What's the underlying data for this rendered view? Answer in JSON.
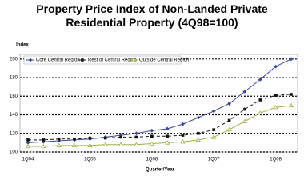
{
  "chart_data": {
    "type": "line",
    "title": "Property Price Index of Non-Landed Private Residential Property (4Q98=100)",
    "y_label": "Index",
    "x_label": "Quarter/Year",
    "categories": [
      "1Q04",
      null,
      null,
      null,
      "1Q05",
      null,
      null,
      null,
      "1Q06",
      null,
      null,
      null,
      "1Q07",
      null,
      null,
      null,
      "1Q08",
      null
    ],
    "series": [
      {
        "name": "Core Central Region",
        "color": "#3b4a9c",
        "marker": "diamond",
        "dash": "none",
        "values": [
          110,
          111,
          112,
          113,
          114,
          116,
          118,
          120,
          123,
          125,
          130,
          137,
          144,
          152,
          165,
          178,
          192,
          200
        ]
      },
      {
        "name": "Rest of Central Region",
        "color": "#111111",
        "marker": "square",
        "dash": "4,3",
        "values": [
          113,
          113,
          114,
          114,
          115,
          115,
          116,
          116,
          117,
          117,
          118,
          120,
          124,
          134,
          146,
          156,
          161,
          162
        ]
      },
      {
        "name": "Outside Central Region",
        "color": "#9fb040",
        "marker": "triangle",
        "dash": "none",
        "values": [
          106,
          106,
          107,
          107,
          107,
          108,
          108,
          108,
          109,
          110,
          111,
          113,
          116,
          124,
          133,
          142,
          148,
          150
        ]
      }
    ],
    "ylim": [
      100,
      205
    ],
    "yticks": [
      100,
      120,
      140,
      160,
      180,
      200
    ],
    "grid": true,
    "legend": "top"
  }
}
